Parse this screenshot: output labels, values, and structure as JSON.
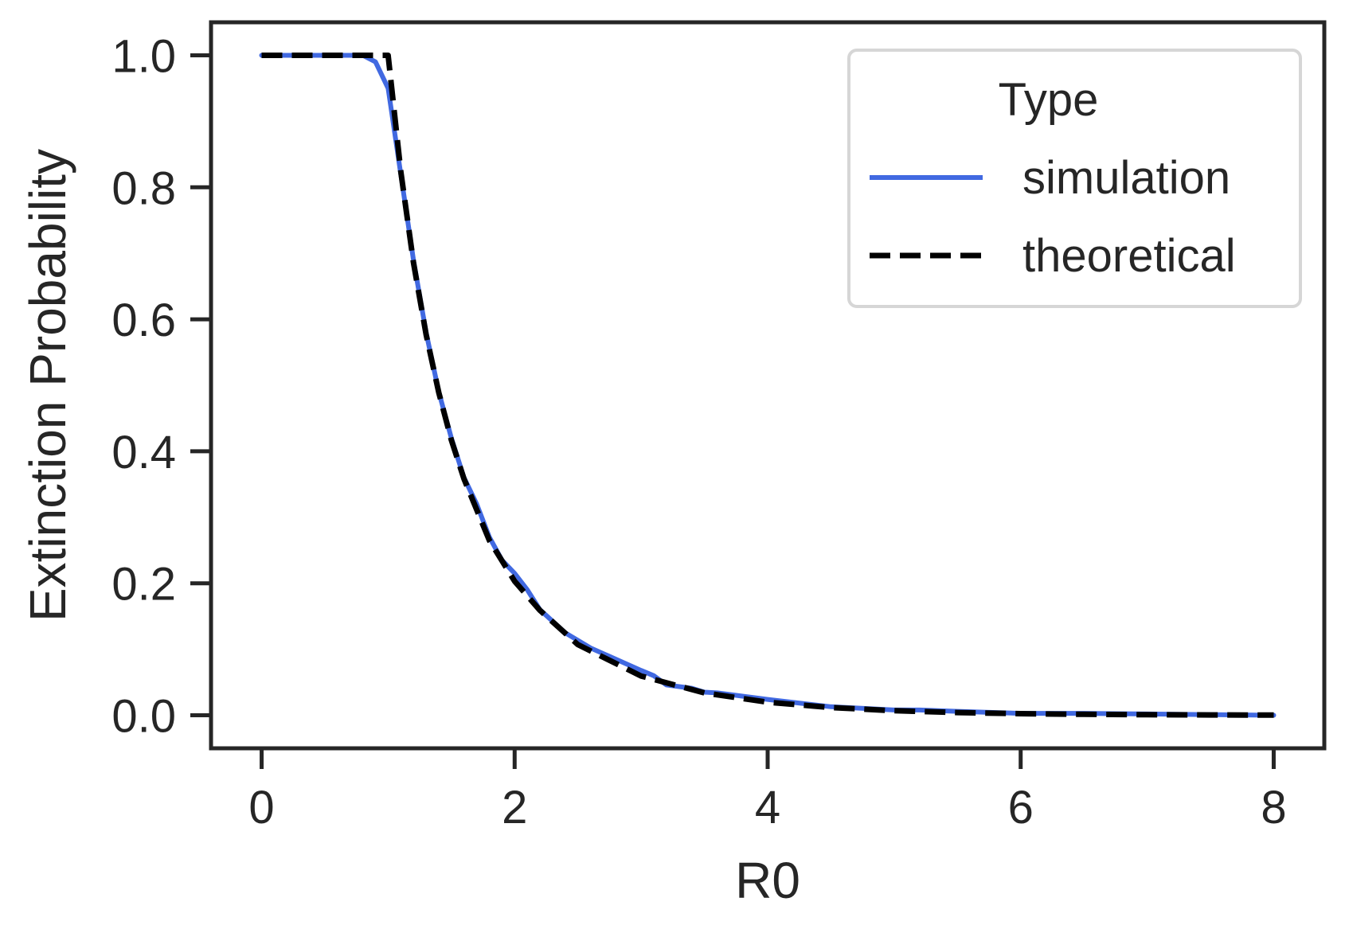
{
  "chart_data": {
    "type": "line",
    "title": "",
    "xlabel": "R0",
    "ylabel": "Extinction Probability",
    "xlim": [
      -0.4,
      8.4
    ],
    "ylim": [
      -0.05,
      1.05
    ],
    "xticks": [
      0,
      2,
      4,
      6,
      8
    ],
    "xtick_labels": [
      "0",
      "2",
      "4",
      "6",
      "8"
    ],
    "yticks": [
      0.0,
      0.2,
      0.4,
      0.6,
      0.8,
      1.0
    ],
    "ytick_labels": [
      "0.0",
      "0.2",
      "0.4",
      "0.6",
      "0.8",
      "1.0"
    ],
    "grid": false,
    "legend": {
      "title": "Type",
      "position": "top-right",
      "entries": [
        "simulation",
        "theoretical"
      ]
    },
    "colors": {
      "simulation": "#4169e1",
      "theoretical": "#000000",
      "axes": "#262626"
    },
    "series": [
      {
        "name": "simulation",
        "style": "solid",
        "x": [
          0,
          0.2,
          0.4,
          0.6,
          0.8,
          0.9,
          1.0,
          1.1,
          1.2,
          1.3,
          1.4,
          1.5,
          1.6,
          1.7,
          1.8,
          1.9,
          2.0,
          2.1,
          2.2,
          2.4,
          2.6,
          2.8,
          3.0,
          3.1,
          3.2,
          3.4,
          3.5,
          3.6,
          3.8,
          4.0,
          4.5,
          5.0,
          5.2,
          5.5,
          6.0,
          6.5,
          7.0,
          7.5,
          8.0
        ],
        "y": [
          1.0,
          1.0,
          1.0,
          1.0,
          1.0,
          0.99,
          0.95,
          0.82,
          0.69,
          0.58,
          0.49,
          0.42,
          0.36,
          0.32,
          0.27,
          0.235,
          0.215,
          0.19,
          0.16,
          0.125,
          0.102,
          0.085,
          0.068,
          0.06,
          0.046,
          0.041,
          0.035,
          0.034,
          0.029,
          0.024,
          0.013,
          0.008,
          0.008,
          0.006,
          0.003,
          0.003,
          0.002,
          0.001,
          0.0
        ]
      },
      {
        "name": "theoretical",
        "style": "dashed",
        "x": [
          0,
          0.5,
          1.0,
          1.1,
          1.2,
          1.3,
          1.4,
          1.5,
          1.6,
          1.8,
          2.0,
          2.2,
          2.5,
          3.0,
          3.5,
          4.0,
          4.5,
          5.0,
          5.5,
          6.0,
          6.5,
          7.0,
          7.5,
          8.0
        ],
        "y": [
          1.0,
          1.0,
          1.0,
          0.824,
          0.686,
          0.577,
          0.489,
          0.417,
          0.358,
          0.265,
          0.203,
          0.159,
          0.107,
          0.0595,
          0.034,
          0.0198,
          0.0117,
          0.00698,
          0.00418,
          0.00252,
          0.00153,
          0.00092,
          0.00056,
          0.00034
        ]
      }
    ]
  }
}
